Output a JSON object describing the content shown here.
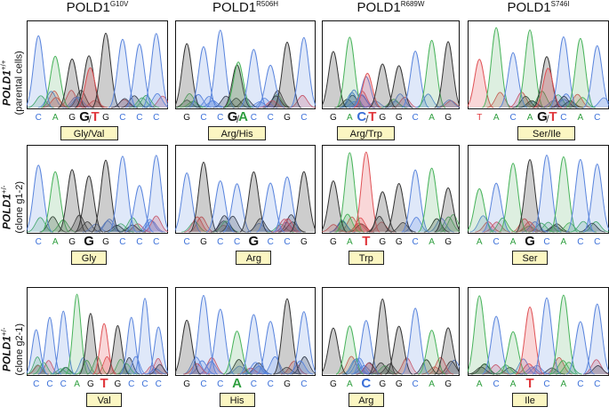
{
  "colors": {
    "A": "#2e9e3e",
    "C": "#3a6fd8",
    "G": "#111111",
    "T": "#e0393e"
  },
  "columns": [
    {
      "name": "POLD1",
      "mutation": "G10V"
    },
    {
      "name": "POLD1",
      "mutation": "R506H"
    },
    {
      "name": "POLD1",
      "mutation": "R689W"
    },
    {
      "name": "POLD1",
      "mutation": "S746I"
    }
  ],
  "rows": [
    {
      "gene": "POLD1",
      "genotype": "+/+",
      "sample": "(parental cells)"
    },
    {
      "gene": "POLD1",
      "genotype": "+/-",
      "sample": "(clone g1-2)"
    },
    {
      "gene": "POLD1",
      "genotype": "+/-",
      "sample": "(clone g2-1)"
    }
  ],
  "panels": [
    [
      {
        "amino_acid": "Gly/Val",
        "bases": [
          "C",
          "A",
          "G",
          "G/T",
          "G",
          "C",
          "C",
          "C"
        ],
        "highlight": 3
      },
      {
        "amino_acid": "Arg/His",
        "bases": [
          "G",
          "C",
          "C",
          "G/A",
          "C",
          "C",
          "G",
          "C"
        ],
        "highlight": 3
      },
      {
        "amino_acid": "Arg/Trp",
        "bases": [
          "G",
          "A",
          "C/T",
          "G",
          "G",
          "C",
          "A",
          "G"
        ],
        "highlight": 2
      },
      {
        "amino_acid": "Ser/Ile",
        "bases": [
          "T",
          "A",
          "C",
          "A",
          "G/T",
          "C",
          "A",
          "C"
        ],
        "highlight": 4
      }
    ],
    [
      {
        "amino_acid": "Gly",
        "bases": [
          "C",
          "A",
          "G",
          "G",
          "G",
          "C",
          "C",
          "C"
        ],
        "highlight": 3
      },
      {
        "amino_acid": "Arg",
        "bases": [
          "C",
          "G",
          "C",
          "C",
          "G",
          "C",
          "C",
          "G"
        ],
        "highlight": 4
      },
      {
        "amino_acid": "Trp",
        "bases": [
          "G",
          "A",
          "T",
          "G",
          "G",
          "C",
          "A",
          "G"
        ],
        "highlight": 2
      },
      {
        "amino_acid": "Ser",
        "bases": [
          "A",
          "C",
          "A",
          "G",
          "C",
          "A",
          "C",
          "C"
        ],
        "highlight": 3
      }
    ],
    [
      {
        "amino_acid": "Val",
        "bases": [
          "C",
          "C",
          "C",
          "A",
          "G",
          "T",
          "G",
          "C",
          "C",
          "C"
        ],
        "highlight": 5
      },
      {
        "amino_acid": "His",
        "bases": [
          "G",
          "C",
          "C",
          "A",
          "C",
          "C",
          "G",
          "C"
        ],
        "highlight": 3
      },
      {
        "amino_acid": "Arg",
        "bases": [
          "G",
          "A",
          "C",
          "G",
          "G",
          "C",
          "A",
          "G"
        ],
        "highlight": 2
      },
      {
        "amino_acid": "Ile",
        "bases": [
          "A",
          "C",
          "A",
          "T",
          "C",
          "A",
          "C",
          "C"
        ],
        "highlight": 3
      }
    ]
  ]
}
